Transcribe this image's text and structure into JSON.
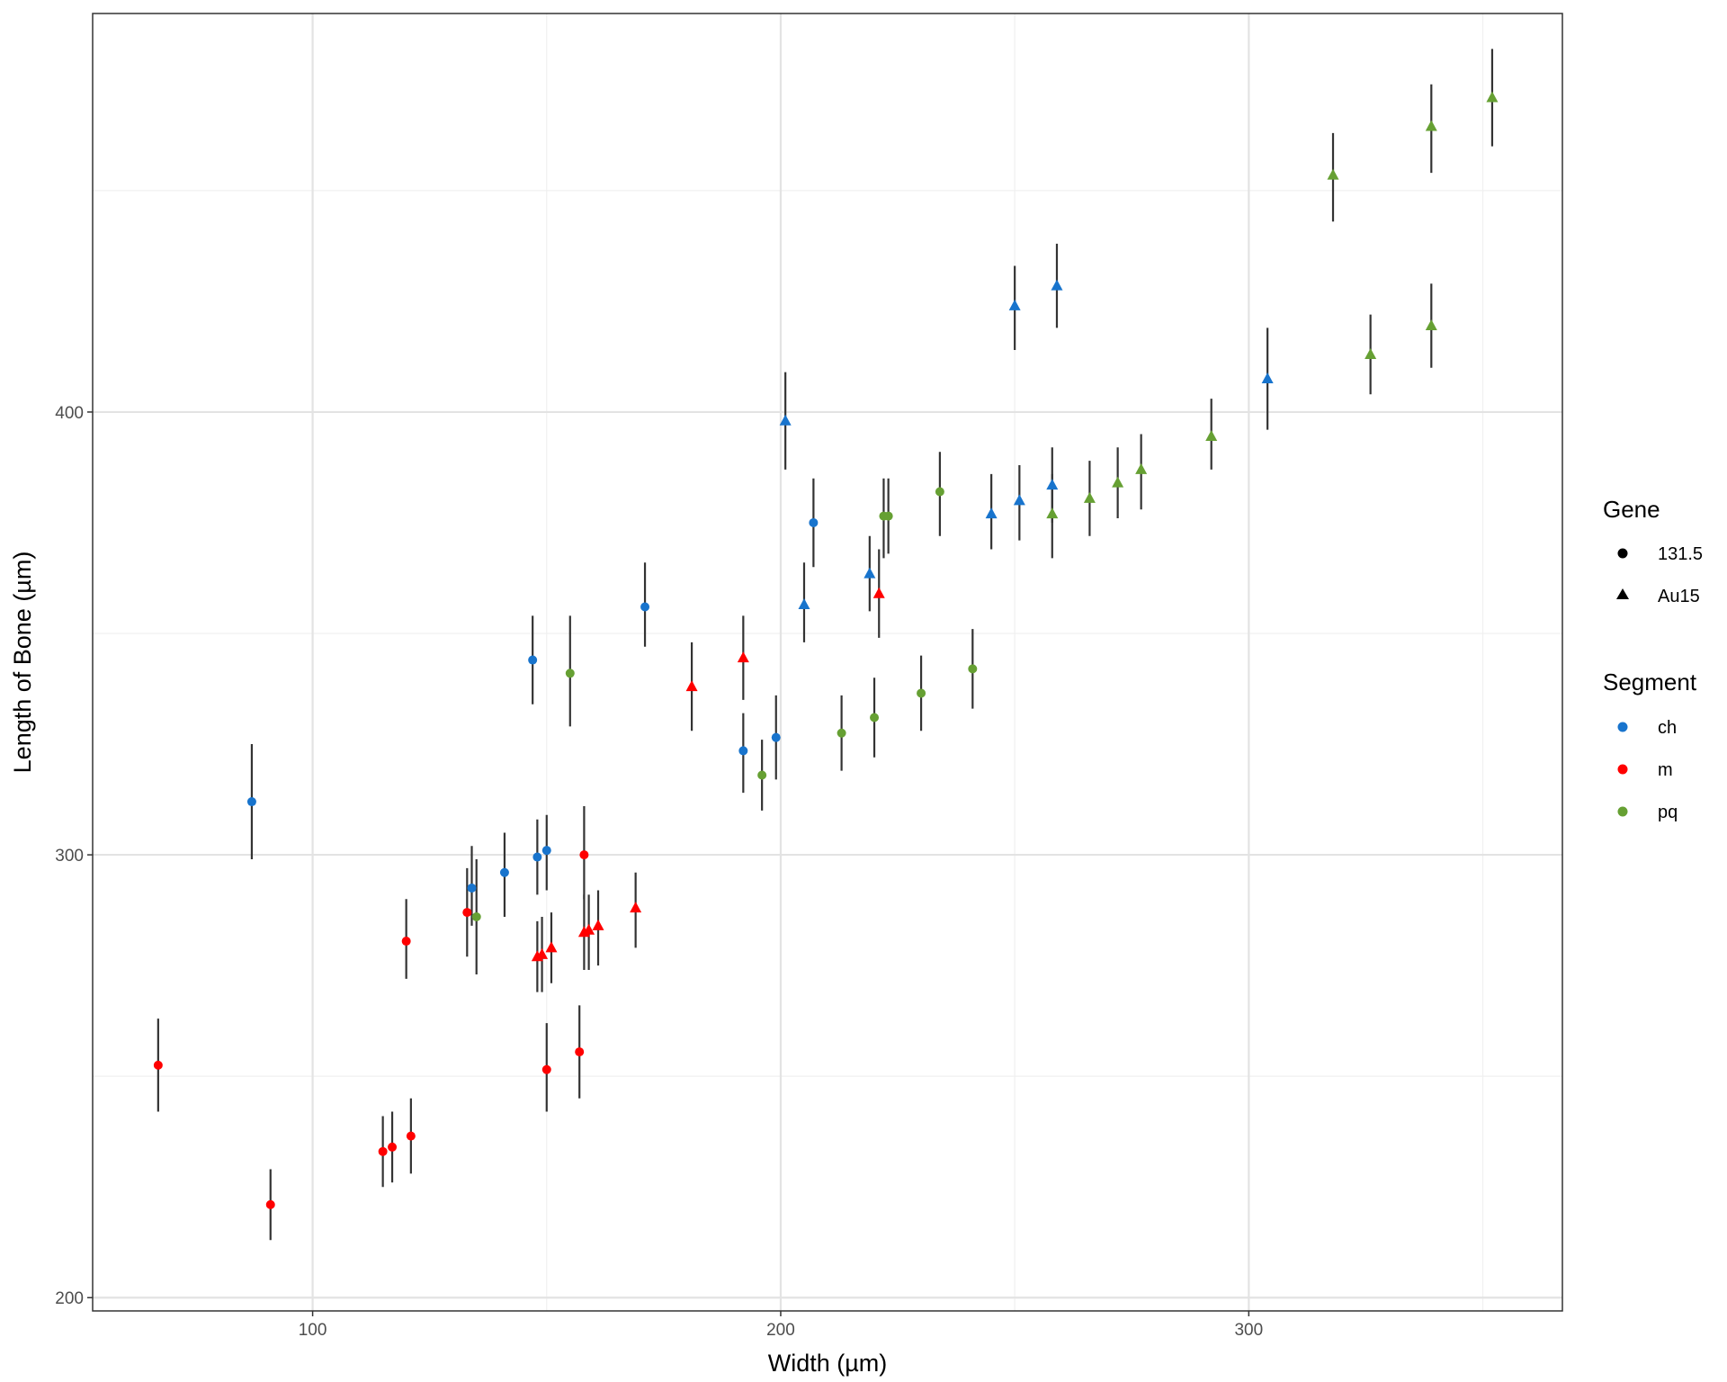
{
  "chart_data": {
    "type": "scatter",
    "xlabel": "Width (µm)",
    "ylabel": "Length of Bone (µm)",
    "xlim": [
      53,
      367
    ],
    "ylim": [
      197,
      490
    ],
    "x_ticks": [
      100,
      200,
      300
    ],
    "y_ticks": [
      200,
      300,
      400
    ],
    "x_tick_labels": [
      "100",
      "200",
      "300"
    ],
    "y_tick_labels": [
      "200",
      "300",
      "400"
    ],
    "grid": true,
    "legend_placement": "right",
    "legends": [
      {
        "title": "Gene",
        "entries": [
          {
            "label": "131.5",
            "shape": "circle"
          },
          {
            "label": "Au15",
            "shape": "triangle"
          }
        ]
      },
      {
        "title": "Segment",
        "entries": [
          {
            "label": "ch",
            "color": "#1874cd"
          },
          {
            "label": "m",
            "color": "#ff0000"
          },
          {
            "label": "pq",
            "color": "#66a033"
          }
        ]
      }
    ],
    "colors": {
      "ch": "#1874cd",
      "m": "#ff0000",
      "pq": "#66a033"
    },
    "points": [
      {
        "x": 67,
        "y": 252.5,
        "low": 242,
        "high": 263,
        "segment": "m",
        "gene": "131.5"
      },
      {
        "x": 91,
        "y": 221,
        "low": 213,
        "high": 229,
        "segment": "m",
        "gene": "131.5"
      },
      {
        "x": 87,
        "y": 312,
        "low": 299,
        "high": 325,
        "segment": "ch",
        "gene": "131.5"
      },
      {
        "x": 115,
        "y": 233,
        "low": 225,
        "high": 241,
        "segment": "m",
        "gene": "131.5"
      },
      {
        "x": 117,
        "y": 234,
        "low": 226,
        "high": 242,
        "segment": "m",
        "gene": "131.5"
      },
      {
        "x": 121,
        "y": 236.5,
        "low": 228,
        "high": 245,
        "segment": "m",
        "gene": "131.5"
      },
      {
        "x": 120,
        "y": 280.5,
        "low": 272,
        "high": 290,
        "segment": "m",
        "gene": "131.5"
      },
      {
        "x": 133,
        "y": 287,
        "low": 277,
        "high": 297,
        "segment": "m",
        "gene": "131.5"
      },
      {
        "x": 134,
        "y": 292.5,
        "low": 284,
        "high": 302,
        "segment": "ch",
        "gene": "131.5"
      },
      {
        "x": 135,
        "y": 286,
        "low": 273,
        "high": 299,
        "segment": "pq",
        "gene": "131.5"
      },
      {
        "x": 141,
        "y": 296,
        "low": 286,
        "high": 305,
        "segment": "ch",
        "gene": "131.5"
      },
      {
        "x": 147,
        "y": 344,
        "low": 334,
        "high": 354,
        "segment": "ch",
        "gene": "131.5"
      },
      {
        "x": 148,
        "y": 299.5,
        "low": 291,
        "high": 308,
        "segment": "ch",
        "gene": "131.5"
      },
      {
        "x": 150,
        "y": 301,
        "low": 292,
        "high": 309,
        "segment": "ch",
        "gene": "131.5"
      },
      {
        "x": 150,
        "y": 251.5,
        "low": 242,
        "high": 262,
        "segment": "m",
        "gene": "131.5"
      },
      {
        "x": 155,
        "y": 341,
        "low": 329,
        "high": 354,
        "segment": "pq",
        "gene": "131.5"
      },
      {
        "x": 157,
        "y": 255.5,
        "low": 245,
        "high": 266,
        "segment": "m",
        "gene": "131.5"
      },
      {
        "x": 158,
        "y": 300,
        "low": 290,
        "high": 311,
        "segment": "m",
        "gene": "131.5"
      },
      {
        "x": 171,
        "y": 356,
        "low": 347,
        "high": 366,
        "segment": "ch",
        "gene": "131.5"
      },
      {
        "x": 192,
        "y": 323.5,
        "low": 314,
        "high": 332,
        "segment": "ch",
        "gene": "131.5"
      },
      {
        "x": 196,
        "y": 318,
        "low": 310,
        "high": 326,
        "segment": "pq",
        "gene": "131.5"
      },
      {
        "x": 199,
        "y": 326.5,
        "low": 317,
        "high": 336,
        "segment": "ch",
        "gene": "131.5"
      },
      {
        "x": 207,
        "y": 375,
        "low": 365,
        "high": 385,
        "segment": "ch",
        "gene": "131.5"
      },
      {
        "x": 213,
        "y": 327.5,
        "low": 319,
        "high": 336,
        "segment": "pq",
        "gene": "131.5"
      },
      {
        "x": 220,
        "y": 331,
        "low": 322,
        "high": 340,
        "segment": "pq",
        "gene": "131.5"
      },
      {
        "x": 222,
        "y": 376.5,
        "low": 367,
        "high": 385,
        "segment": "pq",
        "gene": "131.5"
      },
      {
        "x": 223,
        "y": 376.5,
        "low": 368,
        "high": 385,
        "segment": "pq",
        "gene": "131.5"
      },
      {
        "x": 230,
        "y": 336.5,
        "low": 328,
        "high": 345,
        "segment": "pq",
        "gene": "131.5"
      },
      {
        "x": 234,
        "y": 382,
        "low": 372,
        "high": 391,
        "segment": "pq",
        "gene": "131.5"
      },
      {
        "x": 241,
        "y": 342,
        "low": 333,
        "high": 351,
        "segment": "pq",
        "gene": "131.5"
      },
      {
        "x": 148,
        "y": 277,
        "low": 269,
        "high": 285,
        "segment": "m",
        "gene": "Au15"
      },
      {
        "x": 149,
        "y": 277.5,
        "low": 269,
        "high": 286,
        "segment": "m",
        "gene": "Au15"
      },
      {
        "x": 151,
        "y": 279,
        "low": 271,
        "high": 287,
        "segment": "m",
        "gene": "Au15"
      },
      {
        "x": 158,
        "y": 282.5,
        "low": 274,
        "high": 291,
        "segment": "m",
        "gene": "Au15"
      },
      {
        "x": 159,
        "y": 283,
        "low": 274,
        "high": 291,
        "segment": "m",
        "gene": "Au15"
      },
      {
        "x": 161,
        "y": 284,
        "low": 275,
        "high": 292,
        "segment": "m",
        "gene": "Au15"
      },
      {
        "x": 169,
        "y": 288,
        "low": 279,
        "high": 296,
        "segment": "m",
        "gene": "Au15"
      },
      {
        "x": 181,
        "y": 338,
        "low": 328,
        "high": 348,
        "segment": "m",
        "gene": "Au15"
      },
      {
        "x": 192,
        "y": 344.5,
        "low": 335,
        "high": 354,
        "segment": "m",
        "gene": "Au15"
      },
      {
        "x": 201,
        "y": 398,
        "low": 387,
        "high": 409,
        "segment": "ch",
        "gene": "Au15"
      },
      {
        "x": 205,
        "y": 356.5,
        "low": 348,
        "high": 366,
        "segment": "ch",
        "gene": "Au15"
      },
      {
        "x": 219,
        "y": 363.5,
        "low": 355,
        "high": 372,
        "segment": "ch",
        "gene": "Au15"
      },
      {
        "x": 221,
        "y": 359,
        "low": 349,
        "high": 369,
        "segment": "m",
        "gene": "Au15"
      },
      {
        "x": 245,
        "y": 377,
        "low": 369,
        "high": 386,
        "segment": "ch",
        "gene": "Au15"
      },
      {
        "x": 250,
        "y": 424,
        "low": 414,
        "high": 433,
        "segment": "ch",
        "gene": "Au15"
      },
      {
        "x": 251,
        "y": 380,
        "low": 371,
        "high": 388,
        "segment": "ch",
        "gene": "Au15"
      },
      {
        "x": 258,
        "y": 383.5,
        "low": 375,
        "high": 392,
        "segment": "ch",
        "gene": "Au15"
      },
      {
        "x": 258,
        "y": 377,
        "low": 367,
        "high": 386,
        "segment": "pq",
        "gene": "Au15"
      },
      {
        "x": 259,
        "y": 428.5,
        "low": 419,
        "high": 438,
        "segment": "ch",
        "gene": "Au15"
      },
      {
        "x": 266,
        "y": 380.5,
        "low": 372,
        "high": 389,
        "segment": "pq",
        "gene": "Au15"
      },
      {
        "x": 272,
        "y": 384,
        "low": 376,
        "high": 392,
        "segment": "pq",
        "gene": "Au15"
      },
      {
        "x": 277,
        "y": 387,
        "low": 378,
        "high": 395,
        "segment": "pq",
        "gene": "Au15"
      },
      {
        "x": 292,
        "y": 394.5,
        "low": 387,
        "high": 403,
        "segment": "pq",
        "gene": "Au15"
      },
      {
        "x": 304,
        "y": 407.5,
        "low": 396,
        "high": 419,
        "segment": "ch",
        "gene": "Au15"
      },
      {
        "x": 318,
        "y": 453.5,
        "low": 443,
        "high": 463,
        "segment": "pq",
        "gene": "Au15"
      },
      {
        "x": 326,
        "y": 413,
        "low": 404,
        "high": 422,
        "segment": "pq",
        "gene": "Au15"
      },
      {
        "x": 339,
        "y": 419.5,
        "low": 410,
        "high": 429,
        "segment": "pq",
        "gene": "Au15"
      },
      {
        "x": 339,
        "y": 464.5,
        "low": 454,
        "high": 474,
        "segment": "pq",
        "gene": "Au15"
      },
      {
        "x": 352,
        "y": 471,
        "low": 460,
        "high": 482,
        "segment": "pq",
        "gene": "Au15"
      }
    ]
  }
}
